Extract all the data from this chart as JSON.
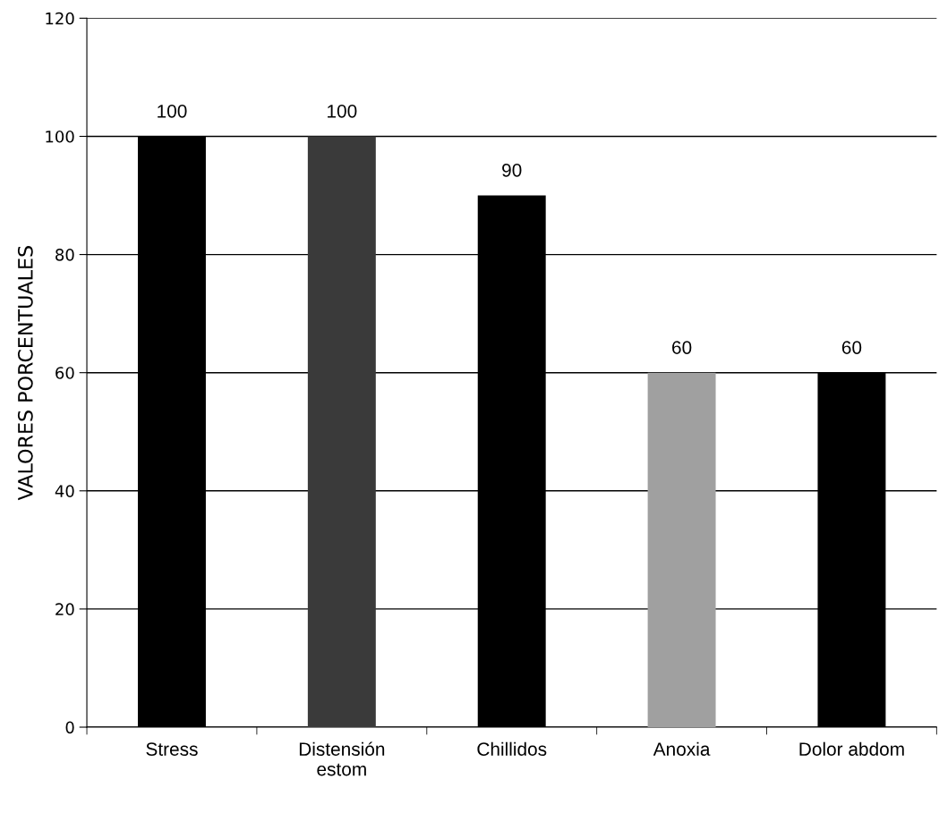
{
  "chart_data": {
    "type": "bar",
    "ylabel": "VALORES PORCENTUALES",
    "categories": [
      "Stress",
      "Distensión estom",
      "Chillidos",
      "Anoxia",
      "Dolor abdom"
    ],
    "values": [
      100,
      100,
      90,
      60,
      60
    ],
    "colors": [
      "#000000",
      "#3a3a3a",
      "#000000",
      "#a0a0a0",
      "#000000"
    ],
    "ylim": [
      0,
      120
    ],
    "yticks": [
      0,
      20,
      40,
      60,
      80,
      100,
      120
    ],
    "grid": "y",
    "data_labels": true
  }
}
